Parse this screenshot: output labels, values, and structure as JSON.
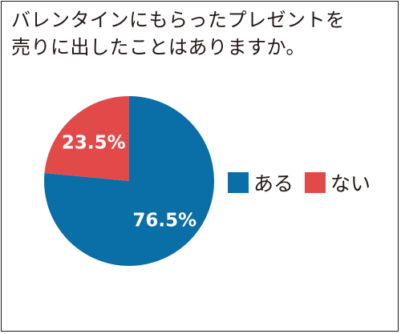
{
  "title_lines": [
    "バレンタインにもらったプレゼントを",
    "売りに出したことはありますか。"
  ],
  "colors": {
    "yes": "#0a6ea7",
    "no": "#e24a4a"
  },
  "chart_data": {
    "type": "pie",
    "title": "バレンタインにもらったプレゼントを売りに出したことはありますか。",
    "categories": [
      "ある",
      "ない"
    ],
    "values": [
      76.5,
      23.5
    ],
    "data_labels": [
      "76.5%",
      "23.5%"
    ],
    "legend": {
      "entries": [
        "ある",
        "ない"
      ],
      "position": "right"
    },
    "start_angle": "12 o'clock",
    "direction": "clockwise"
  }
}
